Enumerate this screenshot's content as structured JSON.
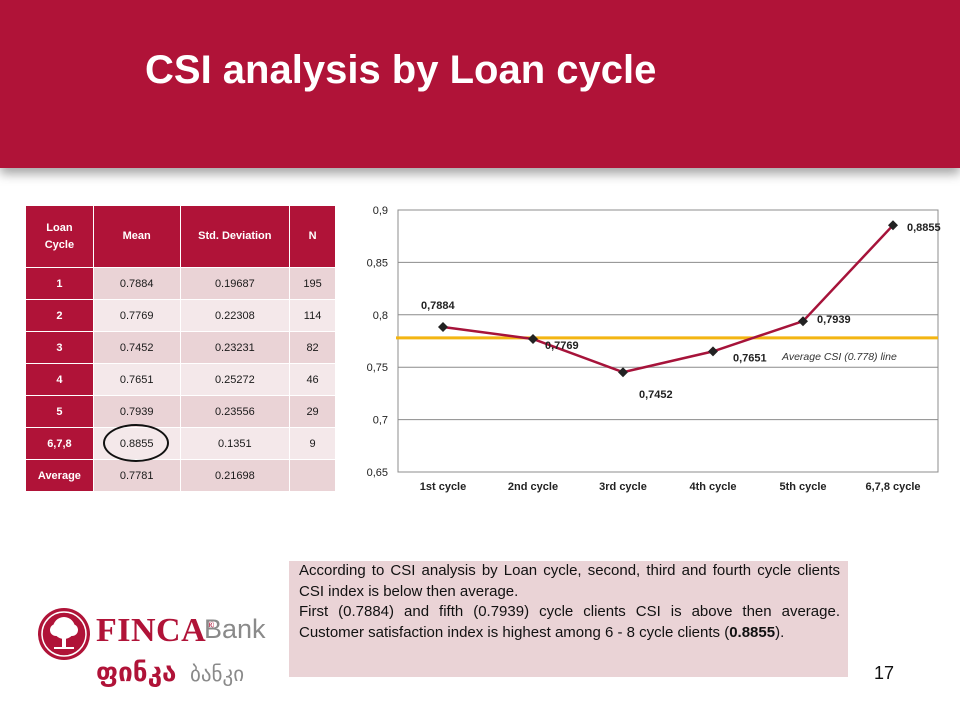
{
  "header": {
    "title": "CSI analysis by Loan cycle"
  },
  "table": {
    "columns": [
      "Loan\nCycle",
      "Mean",
      "Std. Deviation",
      "N"
    ],
    "rows": [
      [
        "1",
        "0.7884",
        "0.19687",
        "195"
      ],
      [
        "2",
        "0.7769",
        "0.22308",
        "114"
      ],
      [
        "3",
        "0.7452",
        "0.23231",
        "82"
      ],
      [
        "4",
        "0.7651",
        "0.25272",
        "46"
      ],
      [
        "5",
        "0.7939",
        "0.23556",
        "29"
      ],
      [
        "6,7,8",
        "0.8855",
        "0.1351",
        "9"
      ],
      [
        "Average",
        "0.7781",
        "0.21698",
        ""
      ]
    ]
  },
  "chart_data": {
    "type": "line",
    "categories": [
      "1st cycle",
      "2nd cycle",
      "3rd cycle",
      "4th cycle",
      "5th cycle",
      "6,7,8 cycle"
    ],
    "series": [
      {
        "values": [
          0.7884,
          0.7769,
          0.7452,
          0.7651,
          0.7939,
          0.8855
        ],
        "color": "#a6133a"
      }
    ],
    "data_labels": [
      "0,7884",
      "0,7769",
      "0,7452",
      "0,7651",
      "0,7939",
      "0,8855"
    ],
    "reference_line": {
      "value": 0.778,
      "label": "Average CSI (0.778) line",
      "color": "#f3b512"
    },
    "y_ticks": [
      "0,65",
      "0,7",
      "0,75",
      "0,8",
      "0,85",
      "0,9"
    ],
    "ylim": [
      0.65,
      0.9
    ],
    "grid": true
  },
  "description": {
    "p1": "According to CSI analysis by Loan cycle, second, third and fourth cycle clients CSI index is below then average.",
    "p2_before": "First (0.7884) and fifth (0.7939) cycle clients CSI is above then average. Customer satisfaction index is highest among 6 - 8 cycle clients (",
    "p2_bold": "0.8855",
    "p2_after": ")."
  },
  "slide_number": "17",
  "logo": {
    "brand": "FINCA",
    "bank": "Bank",
    "brand_geo": "ფინკა",
    "bank_geo": "ბანკი"
  }
}
